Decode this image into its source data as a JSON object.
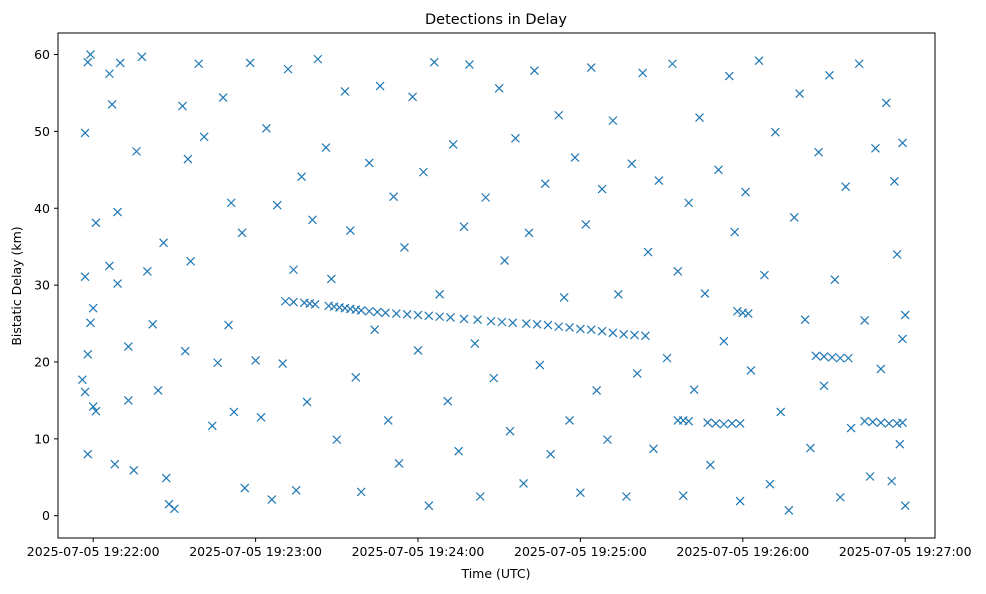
{
  "chart_data": {
    "type": "scatter",
    "title": "Detections in Delay",
    "xlabel": "Time (UTC)",
    "ylabel": "Bistatic Delay (km)",
    "xlim": [
      "2025-07-05 19:21:47",
      "2025-07-05 19:27:11"
    ],
    "ylim": [
      -2.9,
      62.8
    ],
    "x_ticks": [
      "2025-07-05 19:22:00",
      "2025-07-05 19:23:00",
      "2025-07-05 19:24:00",
      "2025-07-05 19:25:00",
      "2025-07-05 19:26:00",
      "2025-07-05 19:27:00"
    ],
    "y_ticks": [
      0,
      10,
      20,
      30,
      40,
      50,
      60
    ],
    "marker": "x",
    "marker_color": "#1f77b4",
    "grid": false,
    "series": [
      {
        "track_points": [
          [
            "2025-07-05 19:23:11",
            27.9
          ],
          [
            "2025-07-05 19:23:14",
            27.8
          ],
          [
            "2025-07-05 19:23:18",
            27.7
          ],
          [
            "2025-07-05 19:23:20",
            27.6
          ],
          [
            "2025-07-05 19:23:22",
            27.5
          ],
          [
            "2025-07-05 19:23:27",
            27.3
          ],
          [
            "2025-07-05 19:23:29",
            27.2
          ],
          [
            "2025-07-05 19:23:31",
            27.1
          ],
          [
            "2025-07-05 19:23:33",
            27.0
          ],
          [
            "2025-07-05 19:23:35",
            26.9
          ],
          [
            "2025-07-05 19:23:37",
            26.8
          ],
          [
            "2025-07-05 19:23:39",
            26.7
          ],
          [
            "2025-07-05 19:23:42",
            26.6
          ],
          [
            "2025-07-05 19:23:45",
            26.5
          ],
          [
            "2025-07-05 19:23:48",
            26.4
          ],
          [
            "2025-07-05 19:23:52",
            26.3
          ],
          [
            "2025-07-05 19:23:56",
            26.2
          ],
          [
            "2025-07-05 19:24:00",
            26.1
          ],
          [
            "2025-07-05 19:24:04",
            26.0
          ],
          [
            "2025-07-05 19:24:08",
            25.9
          ],
          [
            "2025-07-05 19:24:12",
            25.8
          ],
          [
            "2025-07-05 19:24:17",
            25.6
          ],
          [
            "2025-07-05 19:24:22",
            25.5
          ],
          [
            "2025-07-05 19:24:27",
            25.3
          ],
          [
            "2025-07-05 19:24:31",
            25.2
          ],
          [
            "2025-07-05 19:24:35",
            25.1
          ],
          [
            "2025-07-05 19:24:40",
            25.0
          ],
          [
            "2025-07-05 19:24:44",
            24.9
          ],
          [
            "2025-07-05 19:24:48",
            24.8
          ],
          [
            "2025-07-05 19:24:52",
            24.6
          ],
          [
            "2025-07-05 19:24:56",
            24.5
          ],
          [
            "2025-07-05 19:25:00",
            24.3
          ],
          [
            "2025-07-05 19:25:04",
            24.2
          ],
          [
            "2025-07-05 19:25:08",
            24.0
          ],
          [
            "2025-07-05 19:25:12",
            23.8
          ],
          [
            "2025-07-05 19:25:16",
            23.6
          ],
          [
            "2025-07-05 19:25:20",
            23.5
          ],
          [
            "2025-07-05 19:25:24",
            23.4
          ],
          [
            "2025-07-05 19:25:36",
            12.4
          ],
          [
            "2025-07-05 19:25:38",
            12.4
          ],
          [
            "2025-07-05 19:25:40",
            12.3
          ],
          [
            "2025-07-05 19:25:47",
            12.1
          ],
          [
            "2025-07-05 19:25:50",
            12.0
          ],
          [
            "2025-07-05 19:25:53",
            11.9
          ],
          [
            "2025-07-05 19:25:56",
            12.0
          ],
          [
            "2025-07-05 19:25:59",
            12.0
          ],
          [
            "2025-07-05 19:25:58",
            26.6
          ],
          [
            "2025-07-05 19:26:00",
            26.4
          ],
          [
            "2025-07-05 19:26:02",
            26.3
          ],
          [
            "2025-07-05 19:26:27",
            20.8
          ],
          [
            "2025-07-05 19:26:30",
            20.7
          ],
          [
            "2025-07-05 19:26:33",
            20.6
          ],
          [
            "2025-07-05 19:26:36",
            20.5
          ],
          [
            "2025-07-05 19:26:39",
            20.5
          ],
          [
            "2025-07-05 19:26:45",
            12.3
          ],
          [
            "2025-07-05 19:26:48",
            12.2
          ],
          [
            "2025-07-05 19:26:51",
            12.1
          ],
          [
            "2025-07-05 19:26:54",
            12.0
          ],
          [
            "2025-07-05 19:26:57",
            12.0
          ],
          [
            "2025-07-05 19:26:59",
            12.1
          ]
        ],
        "sample_points": [
          [
            "2025-07-05 19:21:57",
            49.8
          ],
          [
            "2025-07-05 19:21:58",
            59.0
          ],
          [
            "2025-07-05 19:21:59",
            60.0
          ],
          [
            "2025-07-05 19:21:57",
            31.1
          ],
          [
            "2025-07-05 19:21:58",
            21.0
          ],
          [
            "2025-07-05 19:21:58",
            8.0
          ],
          [
            "2025-07-05 19:21:56",
            17.7
          ],
          [
            "2025-07-05 19:21:57",
            16.1
          ],
          [
            "2025-07-05 19:22:00",
            14.2
          ],
          [
            "2025-07-05 19:22:01",
            13.6
          ],
          [
            "2025-07-05 19:22:00",
            27.0
          ],
          [
            "2025-07-05 19:21:59",
            25.1
          ],
          [
            "2025-07-05 19:22:01",
            38.1
          ],
          [
            "2025-07-05 19:22:06",
            57.5
          ],
          [
            "2025-07-05 19:22:07",
            53.5
          ],
          [
            "2025-07-05 19:22:09",
            39.5
          ],
          [
            "2025-07-05 19:22:06",
            32.5
          ],
          [
            "2025-07-05 19:22:09",
            30.2
          ],
          [
            "2025-07-05 19:22:08",
            6.7
          ],
          [
            "2025-07-05 19:22:10",
            58.9
          ],
          [
            "2025-07-05 19:22:13",
            22.0
          ],
          [
            "2025-07-05 19:22:13",
            15.0
          ],
          [
            "2025-07-05 19:22:15",
            5.9
          ],
          [
            "2025-07-05 19:22:16",
            47.4
          ],
          [
            "2025-07-05 19:22:18",
            59.7
          ],
          [
            "2025-07-05 19:22:20",
            31.8
          ],
          [
            "2025-07-05 19:22:22",
            24.9
          ],
          [
            "2025-07-05 19:22:24",
            16.3
          ],
          [
            "2025-07-05 19:22:26",
            35.5
          ],
          [
            "2025-07-05 19:22:27",
            4.9
          ],
          [
            "2025-07-05 19:22:28",
            1.5
          ],
          [
            "2025-07-05 19:22:30",
            0.9
          ],
          [
            "2025-07-05 19:22:33",
            53.3
          ],
          [
            "2025-07-05 19:22:35",
            46.4
          ],
          [
            "2025-07-05 19:22:34",
            21.4
          ],
          [
            "2025-07-05 19:22:36",
            33.1
          ],
          [
            "2025-07-05 19:22:39",
            58.8
          ],
          [
            "2025-07-05 19:22:41",
            49.3
          ],
          [
            "2025-07-05 19:22:44",
            11.7
          ],
          [
            "2025-07-05 19:22:46",
            19.9
          ],
          [
            "2025-07-05 19:22:48",
            54.4
          ],
          [
            "2025-07-05 19:22:50",
            24.8
          ],
          [
            "2025-07-05 19:22:51",
            40.7
          ],
          [
            "2025-07-05 19:22:52",
            13.5
          ],
          [
            "2025-07-05 19:22:55",
            36.8
          ],
          [
            "2025-07-05 19:22:56",
            3.6
          ],
          [
            "2025-07-05 19:22:58",
            58.9
          ],
          [
            "2025-07-05 19:23:00",
            20.2
          ],
          [
            "2025-07-05 19:23:02",
            12.8
          ],
          [
            "2025-07-05 19:23:04",
            50.4
          ],
          [
            "2025-07-05 19:23:06",
            2.1
          ],
          [
            "2025-07-05 19:23:08",
            40.4
          ],
          [
            "2025-07-05 19:23:10",
            19.8
          ],
          [
            "2025-07-05 19:23:12",
            58.1
          ],
          [
            "2025-07-05 19:23:14",
            32.0
          ],
          [
            "2025-07-05 19:23:15",
            3.3
          ],
          [
            "2025-07-05 19:23:17",
            44.1
          ],
          [
            "2025-07-05 19:23:19",
            14.8
          ],
          [
            "2025-07-05 19:23:21",
            38.5
          ],
          [
            "2025-07-05 19:23:23",
            59.4
          ],
          [
            "2025-07-05 19:23:26",
            47.9
          ],
          [
            "2025-07-05 19:23:28",
            30.8
          ],
          [
            "2025-07-05 19:23:30",
            9.9
          ],
          [
            "2025-07-05 19:23:33",
            55.2
          ],
          [
            "2025-07-05 19:23:35",
            37.1
          ],
          [
            "2025-07-05 19:23:37",
            18.0
          ],
          [
            "2025-07-05 19:23:39",
            3.1
          ],
          [
            "2025-07-05 19:23:42",
            45.9
          ],
          [
            "2025-07-05 19:23:44",
            24.2
          ],
          [
            "2025-07-05 19:23:46",
            55.9
          ],
          [
            "2025-07-05 19:23:49",
            12.4
          ],
          [
            "2025-07-05 19:23:51",
            41.5
          ],
          [
            "2025-07-05 19:23:53",
            6.8
          ],
          [
            "2025-07-05 19:23:55",
            34.9
          ],
          [
            "2025-07-05 19:23:58",
            54.5
          ],
          [
            "2025-07-05 19:24:00",
            21.5
          ],
          [
            "2025-07-05 19:24:02",
            44.7
          ],
          [
            "2025-07-05 19:24:04",
            1.3
          ],
          [
            "2025-07-05 19:24:06",
            59.0
          ],
          [
            "2025-07-05 19:24:08",
            28.8
          ],
          [
            "2025-07-05 19:24:11",
            14.9
          ],
          [
            "2025-07-05 19:24:13",
            48.3
          ],
          [
            "2025-07-05 19:24:15",
            8.4
          ],
          [
            "2025-07-05 19:24:17",
            37.6
          ],
          [
            "2025-07-05 19:24:19",
            58.7
          ],
          [
            "2025-07-05 19:24:21",
            22.4
          ],
          [
            "2025-07-05 19:24:23",
            2.5
          ],
          [
            "2025-07-05 19:24:25",
            41.4
          ],
          [
            "2025-07-05 19:24:28",
            17.9
          ],
          [
            "2025-07-05 19:24:30",
            55.6
          ],
          [
            "2025-07-05 19:24:32",
            33.2
          ],
          [
            "2025-07-05 19:24:34",
            11.0
          ],
          [
            "2025-07-05 19:24:36",
            49.1
          ],
          [
            "2025-07-05 19:24:39",
            4.2
          ],
          [
            "2025-07-05 19:24:41",
            36.8
          ],
          [
            "2025-07-05 19:24:43",
            57.9
          ],
          [
            "2025-07-05 19:24:45",
            19.6
          ],
          [
            "2025-07-05 19:24:47",
            43.2
          ],
          [
            "2025-07-05 19:24:49",
            8.0
          ],
          [
            "2025-07-05 19:24:52",
            52.1
          ],
          [
            "2025-07-05 19:24:54",
            28.4
          ],
          [
            "2025-07-05 19:24:56",
            12.4
          ],
          [
            "2025-07-05 19:24:58",
            46.6
          ],
          [
            "2025-07-05 19:25:00",
            3.0
          ],
          [
            "2025-07-05 19:25:02",
            37.9
          ],
          [
            "2025-07-05 19:25:04",
            58.3
          ],
          [
            "2025-07-05 19:25:06",
            16.3
          ],
          [
            "2025-07-05 19:25:08",
            42.5
          ],
          [
            "2025-07-05 19:25:10",
            9.9
          ],
          [
            "2025-07-05 19:25:12",
            51.4
          ],
          [
            "2025-07-05 19:25:14",
            28.8
          ],
          [
            "2025-07-05 19:25:17",
            2.5
          ],
          [
            "2025-07-05 19:25:19",
            45.8
          ],
          [
            "2025-07-05 19:25:21",
            18.5
          ],
          [
            "2025-07-05 19:25:23",
            57.6
          ],
          [
            "2025-07-05 19:25:25",
            34.3
          ],
          [
            "2025-07-05 19:25:27",
            8.7
          ],
          [
            "2025-07-05 19:25:29",
            43.6
          ],
          [
            "2025-07-05 19:25:32",
            20.5
          ],
          [
            "2025-07-05 19:25:34",
            58.8
          ],
          [
            "2025-07-05 19:25:36",
            31.8
          ],
          [
            "2025-07-05 19:25:38",
            2.6
          ],
          [
            "2025-07-05 19:25:40",
            40.7
          ],
          [
            "2025-07-05 19:25:42",
            16.4
          ],
          [
            "2025-07-05 19:25:44",
            51.8
          ],
          [
            "2025-07-05 19:25:46",
            28.9
          ],
          [
            "2025-07-05 19:25:48",
            6.6
          ],
          [
            "2025-07-05 19:25:51",
            45.0
          ],
          [
            "2025-07-05 19:25:53",
            22.7
          ],
          [
            "2025-07-05 19:25:55",
            57.2
          ],
          [
            "2025-07-05 19:25:57",
            36.9
          ],
          [
            "2025-07-05 19:25:59",
            1.9
          ],
          [
            "2025-07-05 19:26:01",
            42.1
          ],
          [
            "2025-07-05 19:26:03",
            18.9
          ],
          [
            "2025-07-05 19:26:06",
            59.2
          ],
          [
            "2025-07-05 19:26:08",
            31.3
          ],
          [
            "2025-07-05 19:26:10",
            4.1
          ],
          [
            "2025-07-05 19:26:12",
            49.9
          ],
          [
            "2025-07-05 19:26:14",
            13.5
          ],
          [
            "2025-07-05 19:26:17",
            0.7
          ],
          [
            "2025-07-05 19:26:19",
            38.8
          ],
          [
            "2025-07-05 19:26:21",
            54.9
          ],
          [
            "2025-07-05 19:26:23",
            25.5
          ],
          [
            "2025-07-05 19:26:25",
            8.8
          ],
          [
            "2025-07-05 19:26:28",
            47.3
          ],
          [
            "2025-07-05 19:26:30",
            16.9
          ],
          [
            "2025-07-05 19:26:32",
            57.3
          ],
          [
            "2025-07-05 19:26:34",
            30.7
          ],
          [
            "2025-07-05 19:26:36",
            2.4
          ],
          [
            "2025-07-05 19:26:38",
            42.8
          ],
          [
            "2025-07-05 19:26:40",
            11.4
          ],
          [
            "2025-07-05 19:26:43",
            58.8
          ],
          [
            "2025-07-05 19:26:45",
            25.4
          ],
          [
            "2025-07-05 19:26:47",
            5.1
          ],
          [
            "2025-07-05 19:26:49",
            47.8
          ],
          [
            "2025-07-05 19:26:51",
            19.1
          ],
          [
            "2025-07-05 19:26:53",
            53.7
          ],
          [
            "2025-07-05 19:26:55",
            4.5
          ],
          [
            "2025-07-05 19:26:57",
            34.0
          ],
          [
            "2025-07-05 19:26:59",
            48.5
          ],
          [
            "2025-07-05 19:27:00",
            26.1
          ],
          [
            "2025-07-05 19:27:00",
            1.3
          ],
          [
            "2025-07-05 19:26:59",
            23.0
          ],
          [
            "2025-07-05 19:26:58",
            9.3
          ],
          [
            "2025-07-05 19:26:56",
            43.5
          ]
        ]
      }
    ]
  }
}
